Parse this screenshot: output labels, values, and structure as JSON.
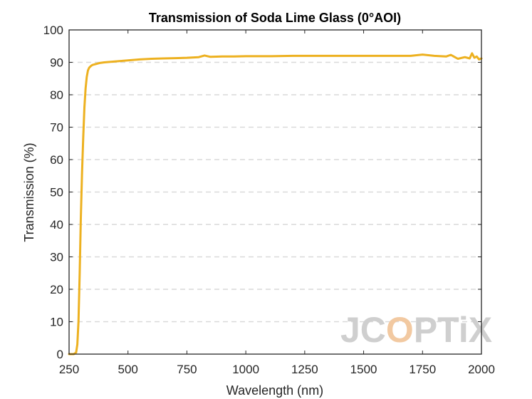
{
  "chart_data": {
    "type": "line",
    "title": "Transmission of Soda Lime Glass (0°AOI)",
    "xlabel": "Wavelength (nm)",
    "ylabel": "Transmission (%)",
    "xlim": [
      250,
      2000
    ],
    "ylim": [
      0,
      100
    ],
    "xticks": [
      "250",
      "500",
      "750",
      "1000",
      "1250",
      "1500",
      "1750",
      "2000"
    ],
    "yticks": [
      "0",
      "10",
      "20",
      "30",
      "40",
      "50",
      "60",
      "70",
      "80",
      "90",
      "100"
    ],
    "grid": "horizontal dashed",
    "series": [
      {
        "color": "#EDB120",
        "x": [
          250,
          270,
          280,
          285,
          290,
          295,
          300,
          305,
          310,
          315,
          320,
          325,
          330,
          335,
          340,
          345,
          350,
          360,
          370,
          380,
          400,
          450,
          500,
          550,
          600,
          650,
          700,
          750,
          800,
          825,
          850,
          900,
          950,
          1000,
          1100,
          1200,
          1300,
          1400,
          1500,
          1600,
          1700,
          1750,
          1800,
          1850,
          1870,
          1900,
          1930,
          1950,
          1960,
          1970,
          1980,
          1990,
          2000
        ],
        "y": [
          0,
          0,
          0.5,
          3,
          10,
          25,
          42,
          56,
          67,
          76,
          82,
          85.5,
          87.5,
          88.3,
          88.7,
          89,
          89.2,
          89.4,
          89.6,
          89.8,
          90,
          90.3,
          90.6,
          90.9,
          91.1,
          91.2,
          91.3,
          91.4,
          91.6,
          92.1,
          91.7,
          91.8,
          91.8,
          91.9,
          91.9,
          92.0,
          92.0,
          92.0,
          92.0,
          92.0,
          92.0,
          92.4,
          92.0,
          91.8,
          92.3,
          91.1,
          91.6,
          91.2,
          92.8,
          91.4,
          91.8,
          90.9,
          91.2
        ]
      }
    ]
  },
  "watermark": {
    "text_before": "JC",
    "text_accent": "O",
    "text_after": "PTiX"
  }
}
